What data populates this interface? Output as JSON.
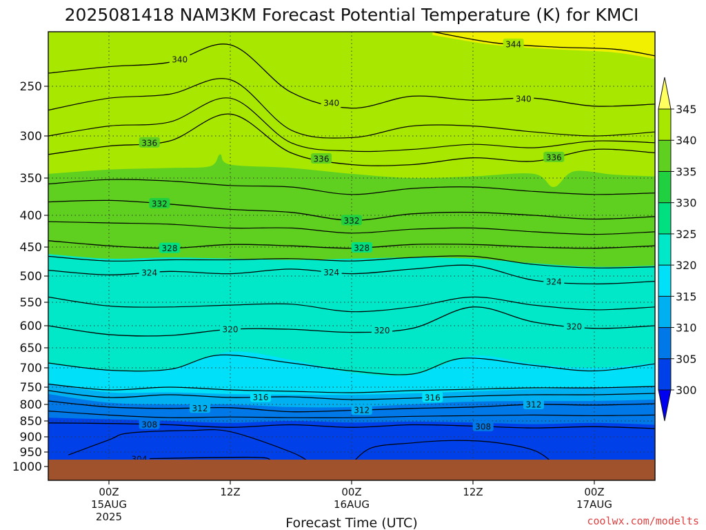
{
  "chart_data": {
    "type": "heatmap",
    "title": "2025081418 NAM3KM Forecast Potential Temperature (K) for KMCI",
    "xlabel": "Forecast Time (UTC)",
    "ylabel": "",
    "credit": "coolwx.com/modelts",
    "x_ticks": [
      {
        "hours": 6,
        "lines": [
          "00Z",
          "15AUG",
          "2025"
        ]
      },
      {
        "hours": 18,
        "lines": [
          "12Z"
        ]
      },
      {
        "hours": 30,
        "lines": [
          "00Z",
          "16AUG"
        ]
      },
      {
        "hours": 42,
        "lines": [
          "12Z"
        ]
      },
      {
        "hours": 54,
        "lines": [
          "00Z",
          "17AUG"
        ]
      }
    ],
    "x_range_hours": [
      0,
      60
    ],
    "y_ticks": [
      250,
      300,
      350,
      400,
      450,
      500,
      550,
      600,
      650,
      700,
      750,
      800,
      850,
      900,
      950,
      1000
    ],
    "y_range_hpa": [
      1045,
      200
    ],
    "colorbar": {
      "levels": [
        300,
        305,
        310,
        315,
        320,
        325,
        330,
        335,
        340,
        345
      ],
      "colors": [
        "#0000f0",
        "#0040e8",
        "#0078e8",
        "#00b0f0",
        "#00e0f8",
        "#00e8c8",
        "#00e080",
        "#20d040",
        "#60d020",
        "#a8e800",
        "#f0f000",
        "#ffff60"
      ]
    },
    "grid": "dotted",
    "terrain_color": "#a0522d",
    "contour_labels": [
      "304",
      "308",
      "312",
      "316",
      "320",
      "324",
      "328",
      "332",
      "336",
      "340",
      "344"
    ],
    "contours": [
      {
        "theta": 304,
        "labels_at_hours": [
          9
        ],
        "points": [
          [
            8,
            974
          ],
          [
            20,
            968
          ],
          [
            22,
            978
          ]
        ]
      },
      {
        "theta": 308,
        "labels_at_hours": [
          10,
          43
        ],
        "points": [
          [
            0,
            856
          ],
          [
            6,
            858
          ],
          [
            12,
            862
          ],
          [
            18,
            870
          ],
          [
            24,
            862
          ],
          [
            30,
            870
          ],
          [
            36,
            862
          ],
          [
            42,
            866
          ],
          [
            48,
            872
          ],
          [
            54,
            868
          ],
          [
            60,
            874
          ]
        ]
      },
      {
        "theta": 312,
        "labels_at_hours": [
          15,
          31,
          48
        ],
        "points": [
          [
            0,
            790
          ],
          [
            6,
            808
          ],
          [
            12,
            812
          ],
          [
            18,
            810
          ],
          [
            24,
            822
          ],
          [
            30,
            818
          ],
          [
            36,
            812
          ],
          [
            42,
            808
          ],
          [
            48,
            800
          ],
          [
            54,
            802
          ],
          [
            60,
            798
          ]
        ]
      },
      {
        "theta": 316,
        "labels_at_hours": [
          21,
          38
        ],
        "points": [
          [
            0,
            760
          ],
          [
            6,
            780
          ],
          [
            12,
            772
          ],
          [
            18,
            780
          ],
          [
            24,
            778
          ],
          [
            30,
            786
          ],
          [
            36,
            782
          ],
          [
            42,
            776
          ],
          [
            48,
            772
          ],
          [
            54,
            772
          ],
          [
            60,
            768
          ]
        ]
      },
      {
        "theta": 320,
        "labels_at_hours": [
          18,
          33,
          52
        ],
        "points": [
          [
            0,
            600
          ],
          [
            6,
            620
          ],
          [
            12,
            622
          ],
          [
            18,
            608
          ],
          [
            24,
            608
          ],
          [
            30,
            615
          ],
          [
            36,
            606
          ],
          [
            42,
            560
          ],
          [
            48,
            592
          ],
          [
            54,
            606
          ],
          [
            60,
            600
          ]
        ]
      },
      {
        "theta": 324,
        "labels_at_hours": [
          10,
          28,
          50
        ],
        "points": [
          [
            0,
            490
          ],
          [
            6,
            498
          ],
          [
            12,
            492
          ],
          [
            18,
            496
          ],
          [
            24,
            488
          ],
          [
            30,
            496
          ],
          [
            36,
            488
          ],
          [
            42,
            482
          ],
          [
            48,
            508
          ],
          [
            54,
            515
          ],
          [
            60,
            510
          ]
        ]
      },
      {
        "theta": 328,
        "labels_at_hours": [
          12,
          31
        ],
        "points": [
          [
            0,
            440
          ],
          [
            6,
            448
          ],
          [
            12,
            452
          ],
          [
            18,
            446
          ],
          [
            24,
            448
          ],
          [
            30,
            452
          ],
          [
            36,
            446
          ],
          [
            42,
            446
          ],
          [
            48,
            450
          ],
          [
            54,
            452
          ],
          [
            60,
            448
          ]
        ]
      },
      {
        "theta": 332,
        "labels_at_hours": [
          11,
          30
        ],
        "points": [
          [
            0,
            382
          ],
          [
            6,
            380
          ],
          [
            12,
            385
          ],
          [
            18,
            392
          ],
          [
            24,
            396
          ],
          [
            30,
            408
          ],
          [
            36,
            398
          ],
          [
            42,
            396
          ],
          [
            48,
            400
          ],
          [
            54,
            406
          ],
          [
            60,
            402
          ]
        ]
      },
      {
        "theta": 336,
        "labels_at_hours": [
          10,
          27,
          50
        ],
        "points": [
          [
            0,
            322
          ],
          [
            6,
            312
          ],
          [
            12,
            306
          ],
          [
            18,
            278
          ],
          [
            24,
            320
          ],
          [
            30,
            334
          ],
          [
            36,
            334
          ],
          [
            42,
            326
          ],
          [
            48,
            330
          ],
          [
            54,
            316
          ],
          [
            60,
            320
          ]
        ]
      },
      {
        "theta": 340,
        "labels_at_hours": [
          13,
          28,
          47
        ],
        "points": [
          [
            0,
            238
          ],
          [
            6,
            232
          ],
          [
            12,
            228
          ],
          [
            18,
            212
          ],
          [
            24,
            256
          ],
          [
            30,
            272
          ],
          [
            36,
            260
          ],
          [
            42,
            264
          ],
          [
            48,
            262
          ],
          [
            54,
            270
          ],
          [
            60,
            268
          ]
        ]
      },
      {
        "theta": 344,
        "labels_at_hours": [
          46
        ],
        "points": [
          [
            38,
            200
          ],
          [
            44,
            210
          ],
          [
            50,
            214
          ],
          [
            56,
            216
          ],
          [
            60,
            222
          ]
        ]
      }
    ]
  }
}
